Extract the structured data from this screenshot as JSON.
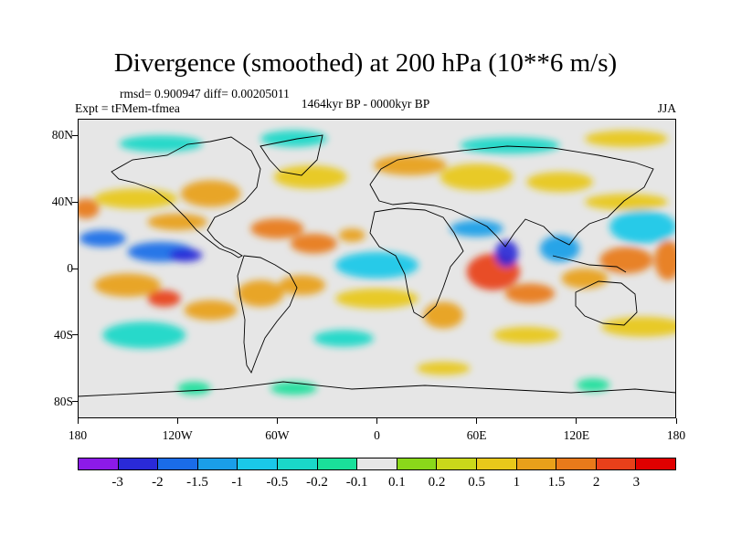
{
  "chart_data": {
    "type": "heatmap",
    "title": "Divergence (smoothed) at 200 hPa (10**6 m/s)",
    "stats_text": "rmsd= 0.900947 diff= 0.00205011",
    "experiment_text": "Expt = tFMem-tfmea",
    "period_text": "1464kyr BP - 0000kyr BP",
    "season": "JJA",
    "xlim": [
      -180,
      180
    ],
    "ylim": [
      -90,
      90
    ],
    "x_ticks": [
      {
        "value": -180,
        "label": "180"
      },
      {
        "value": -120,
        "label": "120W"
      },
      {
        "value": -60,
        "label": "60W"
      },
      {
        "value": 0,
        "label": "0"
      },
      {
        "value": 60,
        "label": "60E"
      },
      {
        "value": 120,
        "label": "120E"
      },
      {
        "value": 180,
        "label": "180"
      }
    ],
    "y_ticks": [
      {
        "value": 80,
        "label": "80N"
      },
      {
        "value": 40,
        "label": "40N"
      },
      {
        "value": 0,
        "label": "0"
      },
      {
        "value": -40,
        "label": "40S"
      },
      {
        "value": -80,
        "label": "80S"
      }
    ],
    "colorbar": {
      "levels": [
        "-3",
        "-2",
        "-1.5",
        "-1",
        "-0.5",
        "-0.2",
        "-0.1",
        "0.1",
        "0.2",
        "0.5",
        "1",
        "1.5",
        "2",
        "3"
      ],
      "colors": [
        "#8c1ae8",
        "#2a2ad8",
        "#1a6ce8",
        "#1a9ee8",
        "#1ac8e8",
        "#1ad8c8",
        "#1ae09a",
        "#e6e6e6",
        "#8ad81a",
        "#cad81a",
        "#e8c81a",
        "#e8a01a",
        "#e87a1a",
        "#e8401a",
        "#e00000"
      ]
    },
    "anomalies": [
      {
        "lon": -165,
        "lat": 18,
        "rx": 14,
        "ry": 5,
        "value": -2
      },
      {
        "lon": -130,
        "lat": 10,
        "rx": 20,
        "ry": 6,
        "value": -2
      },
      {
        "lon": -115,
        "lat": 8,
        "rx": 10,
        "ry": 4,
        "value": -3
      },
      {
        "lon": -175,
        "lat": 36,
        "rx": 8,
        "ry": 6,
        "value": 1.5
      },
      {
        "lon": -145,
        "lat": 42,
        "rx": 25,
        "ry": 6,
        "value": 0.7
      },
      {
        "lon": -120,
        "lat": 28,
        "rx": 18,
        "ry": 5,
        "value": 1
      },
      {
        "lon": -60,
        "lat": 24,
        "rx": 16,
        "ry": 6,
        "value": 1.5
      },
      {
        "lon": -38,
        "lat": 15,
        "rx": 14,
        "ry": 6,
        "value": 1.5
      },
      {
        "lon": -15,
        "lat": 20,
        "rx": 8,
        "ry": 4,
        "value": 1.2
      },
      {
        "lon": -150,
        "lat": -10,
        "rx": 20,
        "ry": 7,
        "value": 1.2
      },
      {
        "lon": -128,
        "lat": -18,
        "rx": 10,
        "ry": 5,
        "value": 2
      },
      {
        "lon": -100,
        "lat": -25,
        "rx": 16,
        "ry": 6,
        "value": 1
      },
      {
        "lon": -70,
        "lat": -15,
        "rx": 14,
        "ry": 8,
        "value": 1.2
      },
      {
        "lon": -45,
        "lat": -10,
        "rx": 14,
        "ry": 6,
        "value": 1
      },
      {
        "lon": -100,
        "lat": 45,
        "rx": 18,
        "ry": 8,
        "value": 1
      },
      {
        "lon": -40,
        "lat": 55,
        "rx": 22,
        "ry": 7,
        "value": 0.8
      },
      {
        "lon": -130,
        "lat": 75,
        "rx": 25,
        "ry": 5,
        "value": -0.5
      },
      {
        "lon": -50,
        "lat": 78,
        "rx": 20,
        "ry": 5,
        "value": -0.5
      },
      {
        "lon": 20,
        "lat": 62,
        "rx": 22,
        "ry": 6,
        "value": 1
      },
      {
        "lon": 80,
        "lat": 74,
        "rx": 30,
        "ry": 5,
        "value": -0.3
      },
      {
        "lon": 150,
        "lat": 78,
        "rx": 25,
        "ry": 5,
        "value": 0.8
      },
      {
        "lon": 60,
        "lat": 55,
        "rx": 22,
        "ry": 8,
        "value": 0.8
      },
      {
        "lon": 110,
        "lat": 52,
        "rx": 20,
        "ry": 6,
        "value": 0.6
      },
      {
        "lon": 160,
        "lat": 25,
        "rx": 20,
        "ry": 10,
        "value": -1
      },
      {
        "lon": 150,
        "lat": 40,
        "rx": 25,
        "ry": 5,
        "value": 0.6
      },
      {
        "lon": 70,
        "lat": -2,
        "rx": 16,
        "ry": 11,
        "value": 2.5
      },
      {
        "lon": 92,
        "lat": -15,
        "rx": 15,
        "ry": 6,
        "value": 1.5
      },
      {
        "lon": 78,
        "lat": 9,
        "rx": 7,
        "ry": 8,
        "value": -3
      },
      {
        "lon": 60,
        "lat": 24,
        "rx": 16,
        "ry": 5,
        "value": -1.5
      },
      {
        "lon": 110,
        "lat": 12,
        "rx": 12,
        "ry": 8,
        "value": -1.5
      },
      {
        "lon": 125,
        "lat": -6,
        "rx": 14,
        "ry": 6,
        "value": 1
      },
      {
        "lon": 150,
        "lat": 5,
        "rx": 16,
        "ry": 8,
        "value": 1.5
      },
      {
        "lon": 175,
        "lat": 5,
        "rx": 8,
        "ry": 12,
        "value": 1.5
      },
      {
        "lon": 0,
        "lat": 2,
        "rx": 25,
        "ry": 8,
        "value": -0.7
      },
      {
        "lon": 0,
        "lat": -18,
        "rx": 25,
        "ry": 6,
        "value": 0.5
      },
      {
        "lon": 40,
        "lat": -28,
        "rx": 12,
        "ry": 8,
        "value": 1
      },
      {
        "lon": -140,
        "lat": -40,
        "rx": 25,
        "ry": 8,
        "value": -0.5
      },
      {
        "lon": -20,
        "lat": -42,
        "rx": 18,
        "ry": 5,
        "value": -0.5
      },
      {
        "lon": 90,
        "lat": -40,
        "rx": 20,
        "ry": 5,
        "value": 0.5
      },
      {
        "lon": 160,
        "lat": -35,
        "rx": 25,
        "ry": 6,
        "value": 0.5
      },
      {
        "lon": -110,
        "lat": -72,
        "rx": 10,
        "ry": 4,
        "value": -0.2
      },
      {
        "lon": -50,
        "lat": -72,
        "rx": 14,
        "ry": 4,
        "value": -0.2
      },
      {
        "lon": 130,
        "lat": -70,
        "rx": 10,
        "ry": 4,
        "value": -0.2
      },
      {
        "lon": 40,
        "lat": -60,
        "rx": 16,
        "ry": 4,
        "value": 0.5
      }
    ]
  }
}
